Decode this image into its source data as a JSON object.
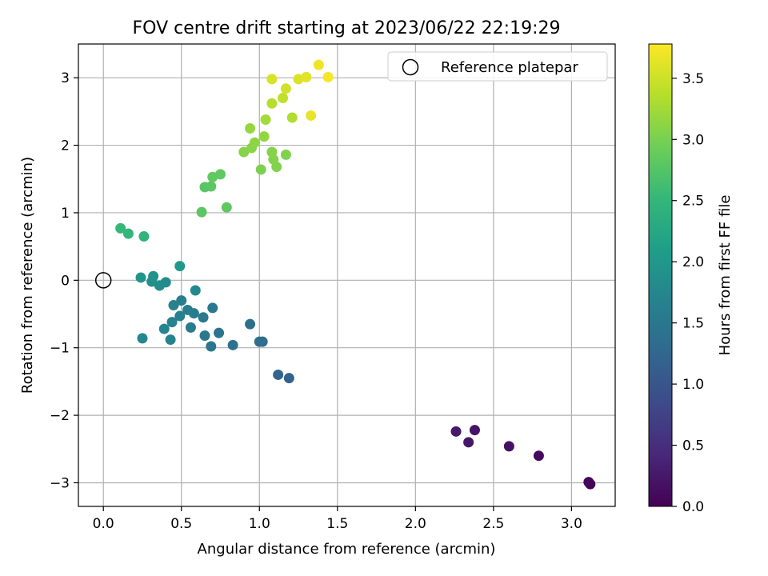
{
  "chart_data": {
    "type": "scatter",
    "title": "FOV centre drift starting at 2023/06/22 22:19:29",
    "xlabel": "Angular distance from reference (arcmin)",
    "ylabel": "Rotation from reference (arcmin)",
    "xlim": [
      -0.16,
      3.28
    ],
    "ylim": [
      -3.35,
      3.5
    ],
    "x_ticks": [
      0.0,
      0.5,
      1.0,
      1.5,
      2.0,
      2.5,
      3.0
    ],
    "x_tick_labels": [
      "0.0",
      "0.5",
      "1.0",
      "1.5",
      "2.0",
      "2.5",
      "3.0"
    ],
    "y_ticks": [
      -3,
      -2,
      -1,
      0,
      1,
      2,
      3
    ],
    "y_tick_labels": [
      "−3",
      "−2",
      "−1",
      "0",
      "1",
      "2",
      "3"
    ],
    "grid": true,
    "legend": {
      "position": "top-right",
      "entries": [
        "Reference platepar"
      ]
    },
    "reference_point": {
      "x": 0.0,
      "y": 0.0
    },
    "colorbar": {
      "label": "Hours from first FF file",
      "colormap": "viridis",
      "range": [
        0.0,
        3.78
      ],
      "ticks": [
        0.0,
        0.5,
        1.0,
        1.5,
        2.0,
        2.5,
        3.0,
        3.5
      ],
      "tick_labels": [
        "0.0",
        "0.5",
        "1.0",
        "1.5",
        "2.0",
        "2.5",
        "3.0",
        "3.5"
      ]
    },
    "points": [
      {
        "x": 3.12,
        "y": -3.02,
        "c": 0.02
      },
      {
        "x": 3.11,
        "y": -2.99,
        "c": 0.05
      },
      {
        "x": 2.79,
        "y": -2.6,
        "c": 0.1
      },
      {
        "x": 2.6,
        "y": -2.46,
        "c": 0.18
      },
      {
        "x": 2.38,
        "y": -2.22,
        "c": 0.22
      },
      {
        "x": 2.34,
        "y": -2.4,
        "c": 0.24
      },
      {
        "x": 2.26,
        "y": -2.24,
        "c": 0.27
      },
      {
        "x": 1.19,
        "y": -1.45,
        "c": 1.18
      },
      {
        "x": 1.12,
        "y": -1.4,
        "c": 1.22
      },
      {
        "x": 1.02,
        "y": -0.91,
        "c": 1.32
      },
      {
        "x": 1.0,
        "y": -0.91,
        "c": 1.35
      },
      {
        "x": 0.94,
        "y": -0.65,
        "c": 1.38
      },
      {
        "x": 0.83,
        "y": -0.96,
        "c": 1.42
      },
      {
        "x": 0.74,
        "y": -0.78,
        "c": 1.46
      },
      {
        "x": 0.69,
        "y": -0.98,
        "c": 1.48
      },
      {
        "x": 0.7,
        "y": -0.41,
        "c": 1.5
      },
      {
        "x": 0.65,
        "y": -0.82,
        "c": 1.52
      },
      {
        "x": 0.64,
        "y": -0.55,
        "c": 1.54
      },
      {
        "x": 0.56,
        "y": -0.7,
        "c": 1.56
      },
      {
        "x": 0.58,
        "y": -0.49,
        "c": 1.58
      },
      {
        "x": 0.54,
        "y": -0.44,
        "c": 1.6
      },
      {
        "x": 0.5,
        "y": -0.3,
        "c": 1.62
      },
      {
        "x": 0.49,
        "y": -0.53,
        "c": 1.64
      },
      {
        "x": 0.45,
        "y": -0.37,
        "c": 1.66
      },
      {
        "x": 0.44,
        "y": -0.62,
        "c": 1.68
      },
      {
        "x": 0.43,
        "y": -0.88,
        "c": 1.7
      },
      {
        "x": 0.39,
        "y": -0.72,
        "c": 1.72
      },
      {
        "x": 0.25,
        "y": -0.86,
        "c": 1.74
      },
      {
        "x": 0.59,
        "y": -0.15,
        "c": 1.78
      },
      {
        "x": 0.4,
        "y": -0.03,
        "c": 1.82
      },
      {
        "x": 0.36,
        "y": -0.08,
        "c": 1.85
      },
      {
        "x": 0.31,
        "y": -0.02,
        "c": 1.88
      },
      {
        "x": 0.32,
        "y": 0.06,
        "c": 1.92
      },
      {
        "x": 0.24,
        "y": 0.04,
        "c": 1.96
      },
      {
        "x": 0.49,
        "y": 0.21,
        "c": 2.02
      },
      {
        "x": 0.26,
        "y": 0.65,
        "c": 2.45
      },
      {
        "x": 0.16,
        "y": 0.69,
        "c": 2.48
      },
      {
        "x": 0.11,
        "y": 0.77,
        "c": 2.52
      },
      {
        "x": 0.63,
        "y": 1.01,
        "c": 2.8
      },
      {
        "x": 0.79,
        "y": 1.08,
        "c": 2.82
      },
      {
        "x": 0.65,
        "y": 1.38,
        "c": 2.78
      },
      {
        "x": 0.69,
        "y": 1.39,
        "c": 2.8
      },
      {
        "x": 0.7,
        "y": 1.53,
        "c": 2.85
      },
      {
        "x": 0.75,
        "y": 1.57,
        "c": 2.83
      },
      {
        "x": 1.01,
        "y": 1.64,
        "c": 3.02
      },
      {
        "x": 1.11,
        "y": 1.68,
        "c": 3.05
      },
      {
        "x": 1.09,
        "y": 1.79,
        "c": 3.06
      },
      {
        "x": 1.17,
        "y": 1.86,
        "c": 3.04
      },
      {
        "x": 1.08,
        "y": 1.9,
        "c": 3.07
      },
      {
        "x": 0.9,
        "y": 1.9,
        "c": 3.08
      },
      {
        "x": 0.95,
        "y": 1.96,
        "c": 3.1
      },
      {
        "x": 0.97,
        "y": 2.04,
        "c": 3.12
      },
      {
        "x": 1.03,
        "y": 2.13,
        "c": 3.15
      },
      {
        "x": 0.94,
        "y": 2.25,
        "c": 3.18
      },
      {
        "x": 1.04,
        "y": 2.38,
        "c": 3.26
      },
      {
        "x": 1.21,
        "y": 2.41,
        "c": 3.33
      },
      {
        "x": 1.08,
        "y": 2.62,
        "c": 3.38
      },
      {
        "x": 1.15,
        "y": 2.7,
        "c": 3.42
      },
      {
        "x": 1.17,
        "y": 2.84,
        "c": 3.52
      },
      {
        "x": 1.08,
        "y": 2.98,
        "c": 3.56
      },
      {
        "x": 1.25,
        "y": 2.98,
        "c": 3.58
      },
      {
        "x": 1.3,
        "y": 3.01,
        "c": 3.62
      },
      {
        "x": 1.33,
        "y": 2.44,
        "c": 3.66
      },
      {
        "x": 1.38,
        "y": 3.19,
        "c": 3.7
      },
      {
        "x": 1.44,
        "y": 3.01,
        "c": 3.74
      }
    ]
  }
}
